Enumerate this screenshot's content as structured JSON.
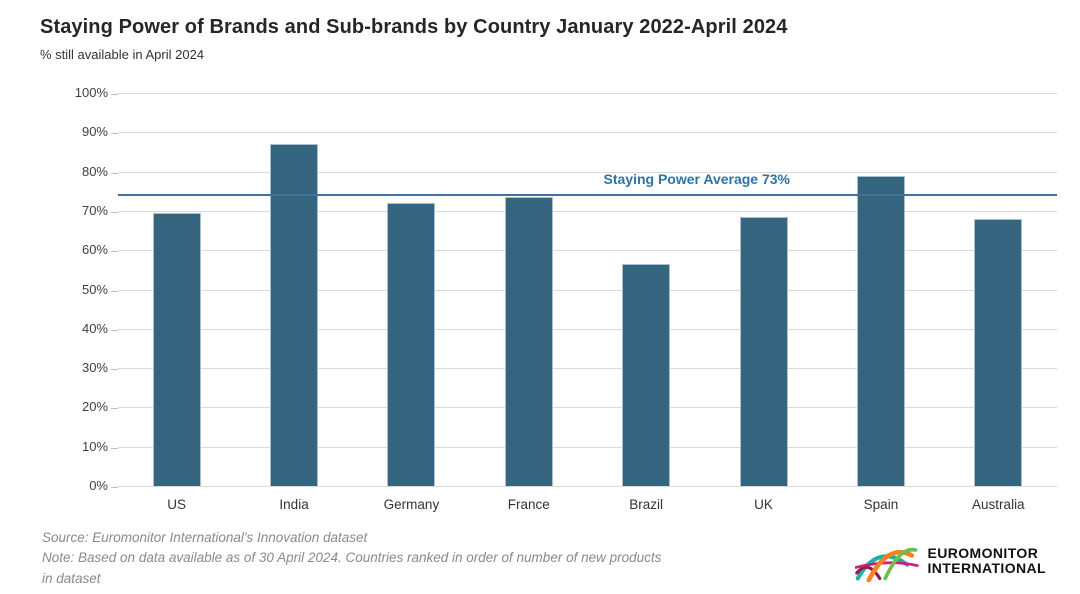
{
  "title": "Staying Power of Brands and Sub-brands by Country January 2022-April 2024",
  "subtitle": "% still available in April 2024",
  "chart_data": {
    "type": "bar",
    "title": "Staying Power of Brands and Sub-brands by Country January 2022-April 2024",
    "subtitle": "% still available in April 2024",
    "categories": [
      "US",
      "India",
      "Germany",
      "France",
      "Brazil",
      "UK",
      "Spain",
      "Australia"
    ],
    "values": [
      69.5,
      87,
      72,
      73.5,
      56.5,
      68.5,
      79,
      68
    ],
    "xlabel": "",
    "ylabel": "",
    "ylim": [
      0,
      100
    ],
    "yticks": [
      "0%",
      "10%",
      "20%",
      "30%",
      "40%",
      "50%",
      "60%",
      "70%",
      "80%",
      "90%",
      "100%"
    ],
    "grid": "horizontal",
    "legend": "none",
    "bar_color": "#35657E",
    "bar_border_color": "#a9c0ce",
    "gridline_color": "#d9d9d9",
    "average_line": {
      "label": "Staying Power Average 73%",
      "value": 73,
      "drawn_at_percent": 74,
      "line_color": "#41719C",
      "label_color": "#2E74A6"
    }
  },
  "footer": {
    "source": "Source: Euromonitor International's Innovation dataset",
    "note_line1": "Note: Based on data available as of 30 April 2024. Countries ranked in order of number of new products",
    "note_line2": "in dataset"
  },
  "logo": {
    "line1": "EUROMONITOR",
    "line2": "INTERNATIONAL",
    "arc_colors": {
      "teal": "#1FB0A4",
      "orange": "#F58220",
      "green": "#6DBE4B",
      "magenta": "#CC1F7E",
      "dark_red": "#8E1F3F"
    }
  }
}
